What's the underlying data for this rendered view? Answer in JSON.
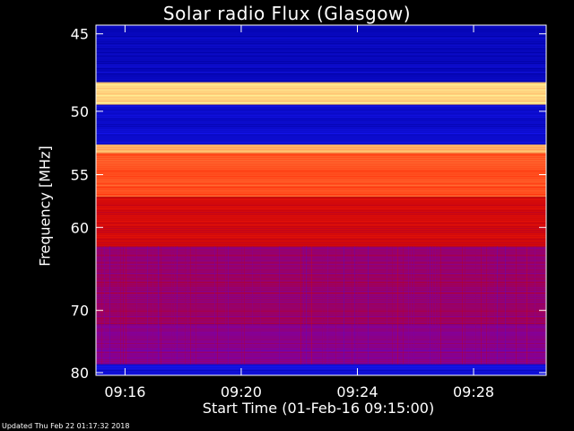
{
  "title": "Solar radio Flux (Glasgow)",
  "xlabel": "Start Time (01-Feb-16 09:15:00)",
  "ylabel": "Frequency [MHz]",
  "footer": "Updated Thu Feb 22 01:17:32 2018",
  "chart_data": {
    "type": "heatmap",
    "title": "Solar radio Flux (Glasgow)",
    "xlabel": "Start Time (01-Feb-16 09:15:00)",
    "ylabel": "Frequency [MHz]",
    "x_start": "09:15:00",
    "x_end": "09:30:30",
    "x_ticks": [
      "09:16",
      "09:20",
      "09:24",
      "09:28"
    ],
    "y_ticks": [
      45,
      50,
      55,
      60,
      70,
      80
    ],
    "y_range_mhz": [
      44.5,
      80.5
    ],
    "y_scale": "reciprocal",
    "colormap": [
      "#0000a0",
      "#1a1aff",
      "#8000a0",
      "#c00010",
      "#ff2000",
      "#ff8040",
      "#ffffa0"
    ],
    "bands": [
      {
        "from_mhz": 44.5,
        "to_mhz": 48.0,
        "level": 0.05
      },
      {
        "from_mhz": 48.0,
        "to_mhz": 49.5,
        "level": 0.95
      },
      {
        "from_mhz": 49.5,
        "to_mhz": 52.5,
        "level": 0.08
      },
      {
        "from_mhz": 52.5,
        "to_mhz": 53.2,
        "level": 0.9
      },
      {
        "from_mhz": 53.2,
        "to_mhz": 57.0,
        "level": 0.75
      },
      {
        "from_mhz": 57.0,
        "to_mhz": 62.0,
        "level": 0.55
      },
      {
        "from_mhz": 62.0,
        "to_mhz": 72.0,
        "level": 0.4
      },
      {
        "from_mhz": 72.0,
        "to_mhz": 78.5,
        "level": 0.35
      },
      {
        "from_mhz": 78.5,
        "to_mhz": 80.5,
        "level": 0.1
      }
    ]
  }
}
